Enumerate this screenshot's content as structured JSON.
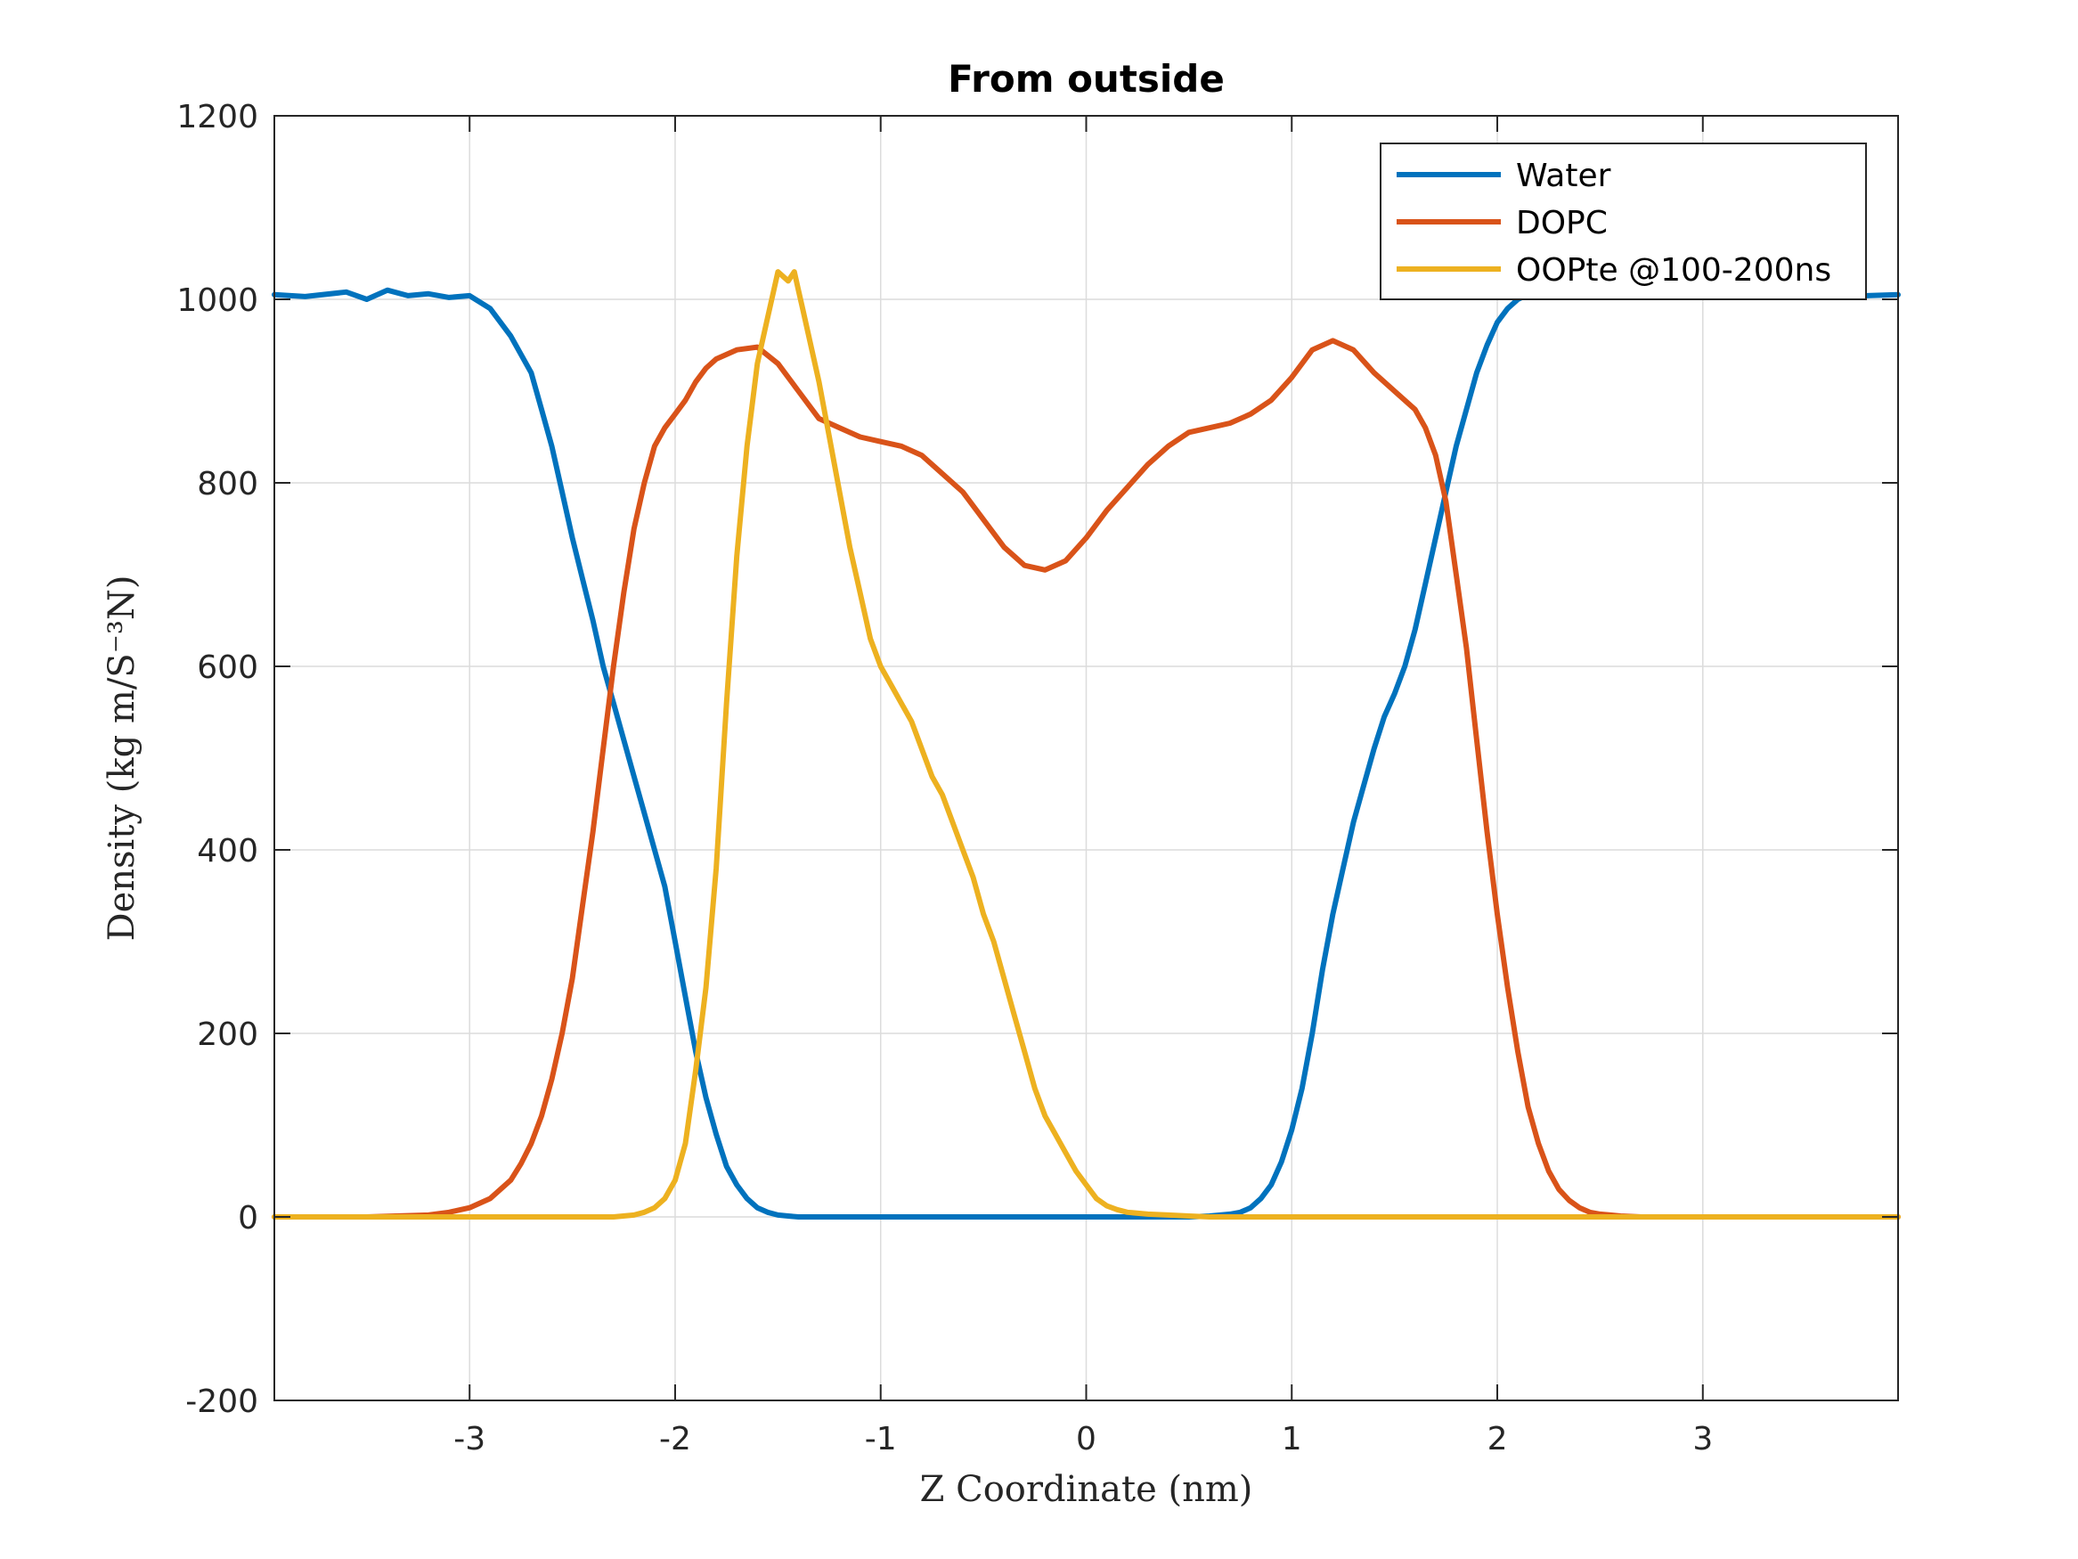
{
  "chart_data": {
    "type": "line",
    "title": "From outside",
    "xlabel": "Z Coordinate (nm)",
    "ylabel": "Density (kg m/S⁻³N)",
    "xlim": [
      -3.95,
      3.95
    ],
    "ylim": [
      -200,
      1200
    ],
    "xticks": [
      -3,
      -2,
      -1,
      0,
      1,
      2,
      3
    ],
    "yticks": [
      -200,
      0,
      200,
      400,
      600,
      800,
      1000,
      1200
    ],
    "xtick_labels": [
      "-3",
      "-2",
      "-1",
      "0",
      "1",
      "2",
      "3"
    ],
    "ytick_labels": [
      "-200",
      "0",
      "200",
      "400",
      "600",
      "800",
      "1000",
      "1200"
    ],
    "grid": true,
    "legend_position": "top-right",
    "series": [
      {
        "name": "Water",
        "color": "#0072BD",
        "x": [
          -3.95,
          -3.8,
          -3.6,
          -3.5,
          -3.4,
          -3.3,
          -3.2,
          -3.1,
          -3.0,
          -2.9,
          -2.8,
          -2.75,
          -2.7,
          -2.65,
          -2.6,
          -2.55,
          -2.5,
          -2.45,
          -2.4,
          -2.35,
          -2.3,
          -2.25,
          -2.2,
          -2.15,
          -2.1,
          -2.05,
          -2.0,
          -1.95,
          -1.9,
          -1.85,
          -1.8,
          -1.75,
          -1.7,
          -1.65,
          -1.6,
          -1.55,
          -1.5,
          -1.45,
          -1.4,
          -1.35,
          -1.3,
          -1.2,
          -1.1,
          -1.0,
          -0.8,
          -0.5,
          -0.2,
          0.0,
          0.2,
          0.4,
          0.5,
          0.6,
          0.7,
          0.75,
          0.8,
          0.85,
          0.9,
          0.95,
          1.0,
          1.05,
          1.1,
          1.15,
          1.2,
          1.25,
          1.3,
          1.35,
          1.4,
          1.45,
          1.5,
          1.55,
          1.6,
          1.65,
          1.7,
          1.75,
          1.8,
          1.85,
          1.9,
          1.95,
          2.0,
          2.05,
          2.1,
          2.15,
          2.2,
          2.25,
          2.3,
          2.35,
          2.4,
          2.45,
          2.5,
          2.55,
          2.6,
          2.7,
          2.8,
          3.0,
          3.2,
          3.4,
          3.6,
          3.8,
          3.95
        ],
        "y": [
          1005,
          1003,
          1008,
          1000,
          1010,
          1004,
          1006,
          1002,
          1004,
          990,
          960,
          940,
          920,
          880,
          840,
          790,
          740,
          695,
          650,
          600,
          560,
          520,
          480,
          440,
          400,
          360,
          300,
          240,
          180,
          130,
          90,
          55,
          35,
          20,
          10,
          5,
          2,
          1,
          0,
          0,
          0,
          0,
          0,
          0,
          0,
          0,
          0,
          0,
          0,
          0,
          0,
          1,
          3,
          5,
          10,
          20,
          35,
          60,
          95,
          140,
          200,
          270,
          330,
          380,
          430,
          470,
          510,
          545,
          570,
          600,
          640,
          690,
          740,
          790,
          840,
          880,
          920,
          950,
          975,
          990,
          1000,
          1005,
          1003,
          1008,
          1004,
          1006,
          1002,
          1005,
          1003,
          1007,
          1004,
          1005,
          1003,
          1006,
          1004,
          1005,
          1003,
          1004,
          1005
        ]
      },
      {
        "name": "DOPC",
        "color": "#D95319",
        "x": [
          -3.95,
          -3.5,
          -3.2,
          -3.1,
          -3.0,
          -2.9,
          -2.8,
          -2.75,
          -2.7,
          -2.65,
          -2.6,
          -2.55,
          -2.5,
          -2.45,
          -2.4,
          -2.35,
          -2.3,
          -2.25,
          -2.2,
          -2.15,
          -2.1,
          -2.05,
          -2.0,
          -1.95,
          -1.9,
          -1.85,
          -1.8,
          -1.7,
          -1.6,
          -1.5,
          -1.4,
          -1.3,
          -1.2,
          -1.1,
          -1.0,
          -0.9,
          -0.8,
          -0.7,
          -0.6,
          -0.5,
          -0.4,
          -0.3,
          -0.2,
          -0.1,
          0.0,
          0.1,
          0.2,
          0.3,
          0.4,
          0.5,
          0.6,
          0.7,
          0.8,
          0.9,
          1.0,
          1.1,
          1.2,
          1.3,
          1.4,
          1.5,
          1.6,
          1.65,
          1.7,
          1.75,
          1.8,
          1.85,
          1.9,
          1.95,
          2.0,
          2.05,
          2.1,
          2.15,
          2.2,
          2.25,
          2.3,
          2.35,
          2.4,
          2.45,
          2.5,
          2.55,
          2.6,
          2.7,
          2.8,
          3.0,
          3.5,
          3.95
        ],
        "y": [
          0,
          0,
          2,
          5,
          10,
          20,
          40,
          58,
          80,
          110,
          150,
          200,
          260,
          340,
          420,
          510,
          600,
          680,
          750,
          800,
          840,
          860,
          875,
          890,
          910,
          925,
          935,
          945,
          948,
          930,
          900,
          870,
          860,
          850,
          845,
          840,
          830,
          810,
          790,
          760,
          730,
          710,
          705,
          715,
          740,
          770,
          795,
          820,
          840,
          855,
          860,
          865,
          875,
          890,
          915,
          945,
          955,
          945,
          920,
          900,
          880,
          860,
          830,
          780,
          700,
          620,
          520,
          420,
          330,
          250,
          180,
          120,
          80,
          50,
          30,
          18,
          10,
          5,
          3,
          2,
          1,
          0,
          0,
          0,
          0,
          0
        ]
      },
      {
        "name": "OOPte @100-200ns",
        "color": "#EDB120",
        "x": [
          -3.95,
          -3.0,
          -2.5,
          -2.3,
          -2.2,
          -2.15,
          -2.1,
          -2.05,
          -2.0,
          -1.95,
          -1.9,
          -1.85,
          -1.8,
          -1.75,
          -1.7,
          -1.65,
          -1.6,
          -1.55,
          -1.5,
          -1.45,
          -1.42,
          -1.4,
          -1.38,
          -1.35,
          -1.3,
          -1.25,
          -1.2,
          -1.15,
          -1.1,
          -1.05,
          -1.0,
          -0.95,
          -0.9,
          -0.85,
          -0.8,
          -0.75,
          -0.7,
          -0.65,
          -0.6,
          -0.55,
          -0.5,
          -0.45,
          -0.4,
          -0.35,
          -0.3,
          -0.25,
          -0.2,
          -0.15,
          -0.1,
          -0.05,
          0.0,
          0.05,
          0.1,
          0.15,
          0.2,
          0.3,
          0.4,
          0.5,
          0.6,
          0.7,
          0.8,
          1.0,
          1.5,
          2.0,
          3.0,
          3.95
        ],
        "y": [
          0,
          0,
          0,
          0,
          2,
          5,
          10,
          20,
          40,
          80,
          160,
          250,
          380,
          560,
          720,
          840,
          930,
          980,
          1030,
          1020,
          1030,
          1010,
          990,
          960,
          910,
          850,
          790,
          730,
          680,
          630,
          600,
          580,
          560,
          540,
          510,
          480,
          460,
          430,
          400,
          370,
          330,
          300,
          260,
          220,
          180,
          140,
          110,
          90,
          70,
          50,
          35,
          20,
          12,
          8,
          5,
          3,
          2,
          1,
          0,
          0,
          0,
          0,
          0,
          0,
          0,
          0
        ]
      }
    ]
  }
}
